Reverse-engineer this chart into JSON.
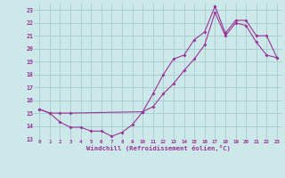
{
  "xlabel": "Windchill (Refroidissement éolien,°C)",
  "bg_color": "#cce8e8",
  "grid_color": "#aad0d0",
  "line_color": "#993399",
  "xlim": [
    -0.5,
    23.5
  ],
  "ylim": [
    13,
    23.5
  ],
  "xticks": [
    0,
    1,
    2,
    3,
    4,
    5,
    6,
    7,
    8,
    9,
    10,
    11,
    12,
    13,
    14,
    15,
    16,
    17,
    18,
    19,
    20,
    21,
    22,
    23
  ],
  "yticks": [
    13,
    14,
    15,
    16,
    17,
    18,
    19,
    20,
    21,
    22,
    23
  ],
  "line1_x": [
    0,
    1,
    2,
    3,
    4,
    5,
    6,
    7,
    8,
    9,
    10,
    11,
    12,
    13,
    14,
    15,
    16,
    17,
    18,
    19,
    20,
    21,
    22,
    23
  ],
  "line1_y": [
    15.3,
    15.0,
    14.3,
    13.9,
    13.9,
    13.6,
    13.6,
    13.2,
    13.5,
    14.1,
    15.1,
    16.5,
    18.0,
    19.2,
    19.5,
    20.7,
    21.3,
    23.3,
    21.2,
    22.2,
    22.2,
    21.0,
    21.0,
    19.3
  ],
  "line2_x": [
    0,
    1,
    2,
    3,
    10,
    11,
    12,
    13,
    14,
    15,
    16,
    17,
    18,
    19,
    20,
    21,
    22,
    23
  ],
  "line2_y": [
    15.3,
    15.0,
    15.0,
    15.0,
    15.1,
    15.5,
    16.5,
    17.3,
    18.3,
    19.2,
    20.3,
    22.8,
    21.0,
    22.0,
    21.8,
    20.5,
    19.5,
    19.3
  ]
}
